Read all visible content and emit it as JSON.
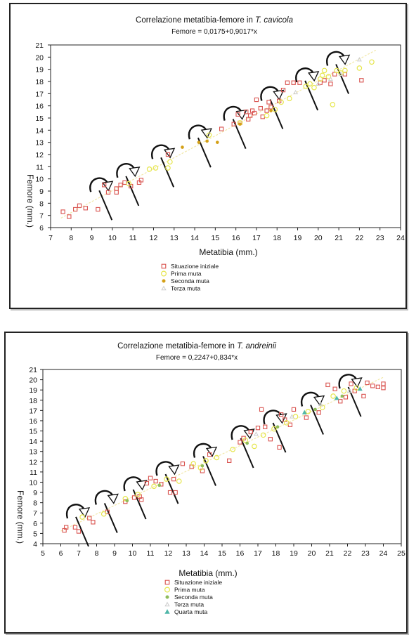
{
  "chart_data": [
    {
      "type": "scatter",
      "title_prefix": "Correlazione metatibia-femore in ",
      "title_species": "T. cavicola",
      "subtitle": "Femore = 0,0175+0,9017*x",
      "xlabel": "Metatibia (mm.)",
      "ylabel": "Femore (mm.)",
      "xlim": [
        7,
        24
      ],
      "ylim": [
        6,
        21
      ],
      "xticks": [
        7,
        8,
        9,
        10,
        11,
        12,
        13,
        14,
        15,
        16,
        17,
        18,
        19,
        20,
        21,
        22,
        23,
        24
      ],
      "yticks": [
        6,
        7,
        8,
        9,
        10,
        11,
        12,
        13,
        14,
        15,
        16,
        17,
        18,
        19,
        20,
        21
      ],
      "regression": {
        "intercept": 0.0175,
        "slope": 0.9017,
        "x_range": [
          7.5,
          22.8
        ]
      },
      "molt_markers_x": [
        9.5,
        10.8,
        12.5,
        14.3,
        16,
        17.8,
        19.5,
        21
      ],
      "legend_position": "bottom",
      "series": [
        {
          "name": "Situazione iniziale",
          "marker": "square-open",
          "color": "#d9534f",
          "points": [
            [
              7.6,
              7.3
            ],
            [
              7.9,
              6.9
            ],
            [
              8.2,
              7.5
            ],
            [
              8.4,
              7.8
            ],
            [
              8.7,
              7.6
            ],
            [
              9.3,
              7.5
            ],
            [
              9.6,
              9.5
            ],
            [
              9.8,
              8.9
            ],
            [
              10.2,
              8.9
            ],
            [
              10.2,
              9.2
            ],
            [
              10.4,
              9.5
            ],
            [
              10.6,
              9.7
            ],
            [
              10.9,
              9.4
            ],
            [
              11.3,
              9.7
            ],
            [
              11.4,
              9.9
            ],
            [
              12.7,
              12
            ],
            [
              15.3,
              14.1
            ],
            [
              15.9,
              14.5
            ],
            [
              16.1,
              15.3
            ],
            [
              16.2,
              14.6
            ],
            [
              16.5,
              15.5
            ],
            [
              16.6,
              14.9
            ],
            [
              16.7,
              15.2
            ],
            [
              16.8,
              15.6
            ],
            [
              16.9,
              15.4
            ],
            [
              17,
              16.5
            ],
            [
              17.2,
              15.8
            ],
            [
              17.3,
              15.1
            ],
            [
              17.5,
              15.6
            ],
            [
              17.6,
              16.3
            ],
            [
              17.7,
              15.9
            ],
            [
              18.1,
              16.4
            ],
            [
              18.3,
              17.3
            ],
            [
              18.5,
              17.9
            ],
            [
              18.8,
              17.9
            ],
            [
              19.1,
              17.9
            ],
            [
              20.1,
              17.9
            ],
            [
              20.3,
              18.1
            ],
            [
              20.6,
              17.8
            ],
            [
              20.8,
              18.6
            ],
            [
              21.3,
              18.6
            ],
            [
              22.1,
              18.1
            ]
          ]
        },
        {
          "name": "Prima muta",
          "marker": "circle-open",
          "color": "#e6e64d",
          "points": [
            [
              10.8,
              9.6
            ],
            [
              11.8,
              10.8
            ],
            [
              12.1,
              10.9
            ],
            [
              12.7,
              10.9
            ],
            [
              12.8,
              11.4
            ],
            [
              14.7,
              13.6
            ],
            [
              16.2,
              14.6
            ],
            [
              17.5,
              15.2
            ],
            [
              17.9,
              15.7
            ],
            [
              18.2,
              16.3
            ],
            [
              18.6,
              16.6
            ],
            [
              19.4,
              17.6
            ],
            [
              19.6,
              17.8
            ],
            [
              19.8,
              17.5
            ],
            [
              20.1,
              18.2
            ],
            [
              20.2,
              18.5
            ],
            [
              20.3,
              18.9
            ],
            [
              20.5,
              18.4
            ],
            [
              20.7,
              16.1
            ],
            [
              20.9,
              18.9
            ],
            [
              21.1,
              18.7
            ],
            [
              21.3,
              18.9
            ],
            [
              22,
              19.1
            ],
            [
              22.6,
              19.6
            ]
          ]
        },
        {
          "name": "Seconda muta",
          "marker": "star",
          "color": "#d4a017",
          "points": [
            [
              13.4,
              12.6
            ],
            [
              14.2,
              13
            ],
            [
              14.6,
              13.1
            ],
            [
              15.1,
              13
            ],
            [
              16.2,
              14.5
            ],
            [
              17.7,
              15.6
            ]
          ]
        },
        {
          "name": "Terza muta",
          "marker": "triangle-open",
          "color": "#cccccc",
          "points": [
            [
              18.9,
              17.1
            ],
            [
              20,
              17.8
            ],
            [
              20.6,
              18.2
            ],
            [
              21.1,
              18.6
            ],
            [
              22,
              19.8
            ]
          ]
        }
      ]
    },
    {
      "type": "scatter",
      "title_prefix": "Correlazione metatibia-femore in ",
      "title_species": "T. andreinii",
      "subtitle": "Femore = 0,2247+0,834*x",
      "xlabel": "Metatibia (mm.)",
      "ylabel": "Femore (mm.)",
      "xlim": [
        5,
        25
      ],
      "ylim": [
        4,
        21
      ],
      "xticks": [
        5,
        6,
        7,
        8,
        9,
        10,
        11,
        12,
        13,
        14,
        15,
        16,
        17,
        18,
        19,
        20,
        21,
        22,
        23,
        24,
        25
      ],
      "yticks": [
        4,
        5,
        6,
        7,
        8,
        9,
        10,
        11,
        12,
        13,
        14,
        15,
        16,
        17,
        18,
        19,
        20,
        21
      ],
      "regression": {
        "intercept": 0.2247,
        "slope": 0.834,
        "x_range": [
          6,
          24
        ]
      },
      "molt_markers_x": [
        7,
        8.6,
        10.2,
        12,
        14.1,
        16.2,
        18,
        20.1,
        22.2
      ],
      "legend_position": "bottom",
      "series": [
        {
          "name": "Situazione iniziale",
          "marker": "square-open",
          "color": "#d9534f",
          "points": [
            [
              6.2,
              5.3
            ],
            [
              6.3,
              5.6
            ],
            [
              6.8,
              5.6
            ],
            [
              7,
              5.2
            ],
            [
              7.8,
              6.1
            ],
            [
              7.6,
              6.5
            ],
            [
              8.6,
              7.1
            ],
            [
              9.6,
              8.1
            ],
            [
              10.1,
              8.5
            ],
            [
              10.4,
              8.6
            ],
            [
              10.5,
              8.3
            ],
            [
              10.8,
              9.9
            ],
            [
              11,
              10.4
            ],
            [
              11.3,
              10.1
            ],
            [
              11.6,
              9.8
            ],
            [
              12.1,
              9
            ],
            [
              12.3,
              10.3
            ],
            [
              12.4,
              9
            ],
            [
              12.8,
              11.8
            ],
            [
              13.3,
              11.5
            ],
            [
              13.9,
              11.1
            ],
            [
              14.3,
              12.7
            ],
            [
              15.4,
              12.1
            ],
            [
              16,
              13.9
            ],
            [
              16.2,
              14.3
            ],
            [
              16.6,
              14.9
            ],
            [
              17,
              15.3
            ],
            [
              17.2,
              17.1
            ],
            [
              17.4,
              15.4
            ],
            [
              17.7,
              14.2
            ],
            [
              18.2,
              13.4
            ],
            [
              18.3,
              16.6
            ],
            [
              18.5,
              16.1
            ],
            [
              18.8,
              15.6
            ],
            [
              19,
              17.1
            ],
            [
              19.7,
              16.3
            ],
            [
              20.4,
              16.8
            ],
            [
              20.9,
              19.5
            ],
            [
              21.3,
              19.1
            ],
            [
              21.6,
              17.9
            ],
            [
              21.9,
              18.3
            ],
            [
              22.2,
              19.6
            ],
            [
              22.4,
              18.9
            ],
            [
              22.9,
              18.4
            ],
            [
              23.1,
              19.7
            ],
            [
              23.4,
              19.4
            ],
            [
              23.7,
              19.3
            ],
            [
              24,
              19.6
            ],
            [
              24,
              19.2
            ]
          ]
        },
        {
          "name": "Prima muta",
          "marker": "circle-open",
          "color": "#e6e64d",
          "points": [
            [
              7.2,
              6.6
            ],
            [
              8.4,
              6.9
            ],
            [
              9.6,
              8.4
            ],
            [
              10.3,
              8.8
            ],
            [
              11.2,
              9.6
            ],
            [
              11.9,
              10.3
            ],
            [
              12.6,
              10.1
            ],
            [
              13.4,
              11.8
            ],
            [
              13.8,
              11.4
            ],
            [
              14.1,
              12.1
            ],
            [
              14.7,
              12.4
            ],
            [
              15.6,
              13.2
            ],
            [
              16.3,
              14.1
            ],
            [
              16.8,
              13.5
            ],
            [
              17.3,
              14.6
            ],
            [
              17.9,
              15.2
            ],
            [
              18.6,
              15.8
            ],
            [
              19.1,
              16.4
            ],
            [
              19.8,
              16.9
            ],
            [
              20.6,
              17.3
            ],
            [
              21.2,
              18.4
            ],
            [
              21.8,
              18.9
            ],
            [
              22.5,
              19.2
            ]
          ]
        },
        {
          "name": "Seconda muta",
          "marker": "star",
          "color": "#8fbc5a",
          "points": [
            [
              9.7,
              8.2
            ],
            [
              11.5,
              9.7
            ],
            [
              13.9,
              11.6
            ],
            [
              16.4,
              13.8
            ],
            [
              18.1,
              15.4
            ],
            [
              20.2,
              17.1
            ],
            [
              21.7,
              18.4
            ]
          ]
        },
        {
          "name": "Terza muta",
          "marker": "triangle-open",
          "color": "#cccccc",
          "points": [
            [
              16.9,
              14.7
            ],
            [
              18.9,
              16.4
            ],
            [
              20.5,
              17.6
            ],
            [
              22.1,
              18.9
            ]
          ]
        },
        {
          "name": "Quarta muta",
          "marker": "triangle-filled",
          "color": "#4fb6a8",
          "points": [
            [
              19.6,
              16.8
            ],
            [
              21.4,
              18.2
            ],
            [
              22.7,
              19.1
            ]
          ]
        }
      ]
    }
  ]
}
